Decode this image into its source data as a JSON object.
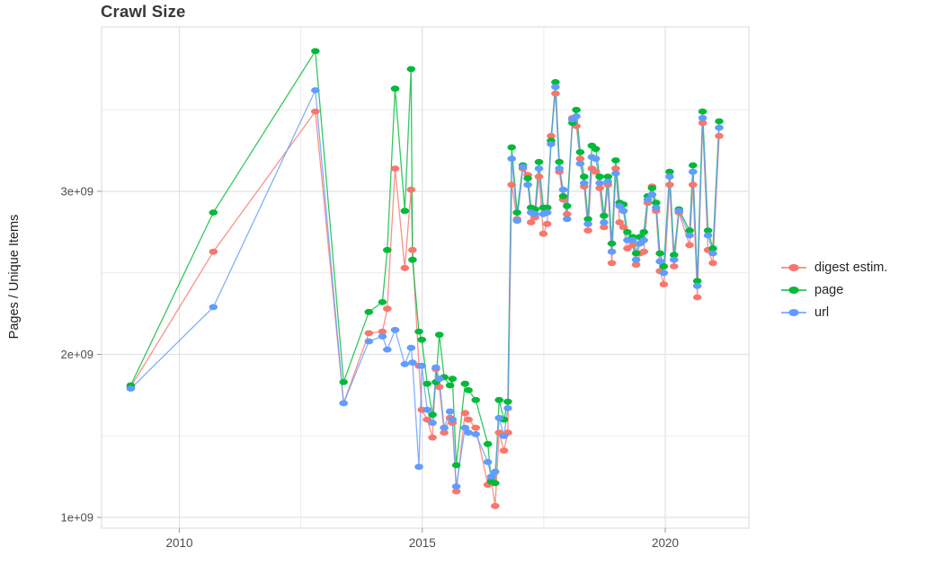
{
  "title": "Crawl Size",
  "y_axis": {
    "label": "Pages / Unique Items",
    "ticks": [
      "1e+09",
      "2e+09",
      "3e+09"
    ],
    "tick_values": [
      1,
      2,
      3
    ],
    "minor_tick_values": [
      1.5,
      2.5,
      3.5
    ]
  },
  "x_axis": {
    "ticks": [
      "2010",
      "2015",
      "2020"
    ],
    "tick_values": [
      2010,
      2015,
      2020
    ],
    "minor_tick_values": [
      2012.5,
      2017.5
    ]
  },
  "legend": {
    "position": "right",
    "items": [
      {
        "label": "digest estim.",
        "color": "#F8766D"
      },
      {
        "label": "page",
        "color": "#00BA38"
      },
      {
        "label": "url",
        "color": "#619CFF"
      }
    ]
  },
  "chart_data": {
    "type": "line",
    "title": "Crawl Size",
    "xlabel": "",
    "ylabel": "Pages / Unique Items",
    "x_unit": "year (decimal, one point per crawl)",
    "y_unit": "count (×1e9)",
    "xlim": [
      2008.4,
      2021.72
    ],
    "ylim_e9": [
      0.93,
      4.01
    ],
    "grid": true,
    "legend_position": "right",
    "x": [
      2009.0,
      2010.7,
      2012.8,
      2013.38,
      2013.9,
      2014.18,
      2014.28,
      2014.44,
      2014.64,
      2014.77,
      2014.8,
      2014.93,
      2014.99,
      2015.1,
      2015.21,
      2015.28,
      2015.35,
      2015.45,
      2015.57,
      2015.62,
      2015.7,
      2015.88,
      2015.95,
      2016.1,
      2016.35,
      2016.42,
      2016.5,
      2016.58,
      2016.68,
      2016.76,
      2016.84,
      2016.95,
      2017.07,
      2017.17,
      2017.24,
      2017.32,
      2017.4,
      2017.49,
      2017.57,
      2017.65,
      2017.74,
      2017.82,
      2017.9,
      2017.98,
      2018.09,
      2018.17,
      2018.25,
      2018.33,
      2018.41,
      2018.49,
      2018.57,
      2018.65,
      2018.74,
      2018.82,
      2018.9,
      2018.98,
      2019.06,
      2019.14,
      2019.22,
      2019.33,
      2019.4,
      2019.48,
      2019.56,
      2019.64,
      2019.73,
      2019.81,
      2019.89,
      2019.97,
      2020.09,
      2020.18,
      2020.28,
      2020.5,
      2020.57,
      2020.66,
      2020.77,
      2020.88,
      2020.98,
      2021.11
    ],
    "series": [
      {
        "name": "digest estim.",
        "color": "#F8766D",
        "values": [
          1.8,
          2.63,
          3.49,
          1.7,
          2.13,
          2.14,
          2.28,
          3.14,
          2.53,
          3.01,
          2.64,
          1.93,
          1.66,
          1.6,
          1.49,
          1.91,
          1.8,
          1.52,
          1.61,
          1.58,
          1.16,
          1.64,
          1.6,
          1.55,
          1.2,
          1.23,
          1.07,
          1.52,
          1.41,
          1.52,
          3.04,
          2.83,
          3.14,
          3.1,
          2.81,
          2.84,
          3.09,
          2.74,
          2.8,
          3.34,
          3.6,
          3.12,
          2.95,
          2.86,
          3.45,
          3.4,
          3.2,
          3.03,
          2.76,
          3.14,
          3.12,
          3.02,
          2.78,
          3.04,
          2.56,
          3.14,
          2.81,
          2.78,
          2.65,
          2.67,
          2.55,
          2.62,
          2.63,
          2.93,
          3.03,
          2.88,
          2.51,
          2.43,
          3.04,
          2.54,
          2.87,
          2.67,
          3.04,
          2.35,
          3.42,
          2.64,
          2.56,
          3.34
        ]
      },
      {
        "name": "page",
        "color": "#00BA38",
        "values": [
          1.81,
          2.87,
          3.86,
          1.83,
          2.26,
          2.32,
          2.64,
          3.63,
          2.88,
          3.75,
          2.58,
          2.14,
          2.09,
          1.82,
          1.63,
          1.83,
          2.12,
          1.86,
          1.81,
          1.85,
          1.32,
          1.82,
          1.78,
          1.72,
          1.45,
          1.22,
          1.21,
          1.72,
          1.6,
          1.71,
          3.27,
          2.87,
          3.16,
          3.08,
          2.9,
          2.89,
          3.18,
          2.9,
          2.9,
          3.31,
          3.67,
          3.18,
          2.97,
          2.91,
          3.42,
          3.5,
          3.24,
          3.09,
          2.83,
          3.28,
          3.26,
          3.09,
          2.85,
          3.09,
          2.68,
          3.19,
          2.93,
          2.92,
          2.75,
          2.72,
          2.62,
          2.72,
          2.75,
          2.97,
          3.02,
          2.93,
          2.62,
          2.54,
          3.12,
          2.61,
          2.89,
          2.76,
          3.16,
          2.45,
          3.49,
          2.76,
          2.65,
          3.43
        ]
      },
      {
        "name": "url",
        "color": "#619CFF",
        "values": [
          1.79,
          2.29,
          3.62,
          1.7,
          2.08,
          2.11,
          2.03,
          2.15,
          1.94,
          2.04,
          1.95,
          1.31,
          1.93,
          1.66,
          1.58,
          1.92,
          1.85,
          1.55,
          1.65,
          1.6,
          1.19,
          1.55,
          1.52,
          1.51,
          1.34,
          1.25,
          1.28,
          1.61,
          1.5,
          1.67,
          3.2,
          2.82,
          3.15,
          3.04,
          2.87,
          2.86,
          3.14,
          2.86,
          2.87,
          3.29,
          3.64,
          3.14,
          3.01,
          2.83,
          3.44,
          3.46,
          3.17,
          3.05,
          2.8,
          3.21,
          3.2,
          3.05,
          2.81,
          3.06,
          2.63,
          3.11,
          2.91,
          2.88,
          2.7,
          2.7,
          2.58,
          2.68,
          2.7,
          2.95,
          2.98,
          2.9,
          2.57,
          2.5,
          3.09,
          2.58,
          2.88,
          2.73,
          3.12,
          2.42,
          3.45,
          2.73,
          2.62,
          3.39
        ]
      }
    ]
  }
}
